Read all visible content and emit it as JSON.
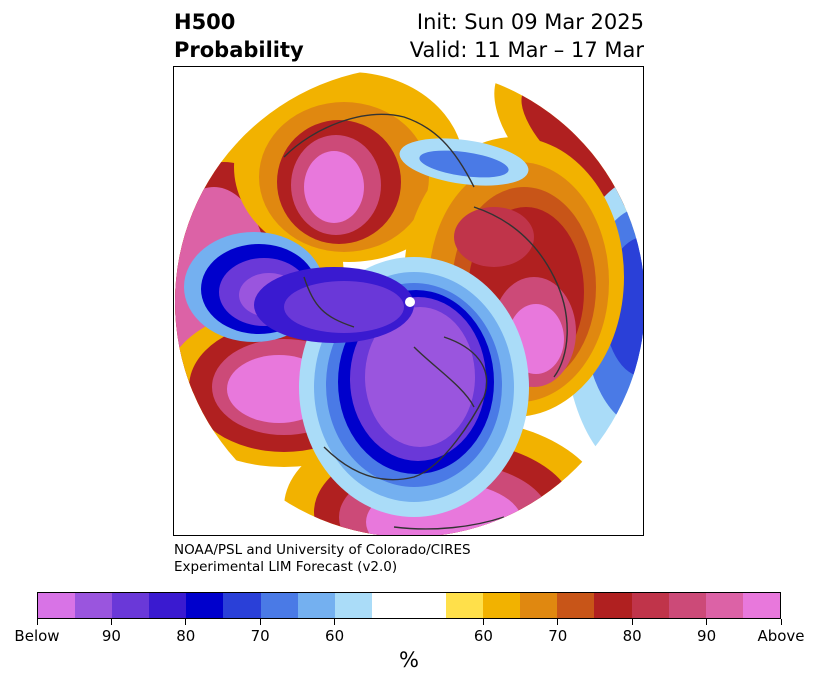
{
  "header": {
    "title_line1": "H500",
    "title_line2": "Probability",
    "init": "Init: Sun 09 Mar 2025",
    "valid": "Valid: 11 Mar – 17 Mar"
  },
  "credit": {
    "line1": "NOAA/PSL and University of Colorado/CIRES",
    "line2": "Experimental LIM Forecast (v2.0)"
  },
  "colorbar": {
    "colors": [
      "#d873e6",
      "#9a55de",
      "#6a38d8",
      "#3a1ad0",
      "#0000cc",
      "#2a40d8",
      "#4a7ae6",
      "#74b0f0",
      "#aadcf8",
      "#ffffff",
      "#ffffff",
      "#ffe04a",
      "#f2b200",
      "#e08810",
      "#c85518",
      "#b02020",
      "#c0344a",
      "#cc4a78",
      "#dc62a6",
      "#e878dc"
    ],
    "labels": [
      "Below",
      "90",
      "80",
      "70",
      "60",
      "60",
      "70",
      "80",
      "90",
      "Above"
    ],
    "unit": "%"
  },
  "map_colors": {
    "below_strong": "#d873e6",
    "below_mid": "#3a1ad0",
    "below_weak": "#74b0f0",
    "above_weak": "#f2b200",
    "above_mid": "#b02020",
    "above_strong": "#e878dc",
    "coastline": "#333333"
  }
}
